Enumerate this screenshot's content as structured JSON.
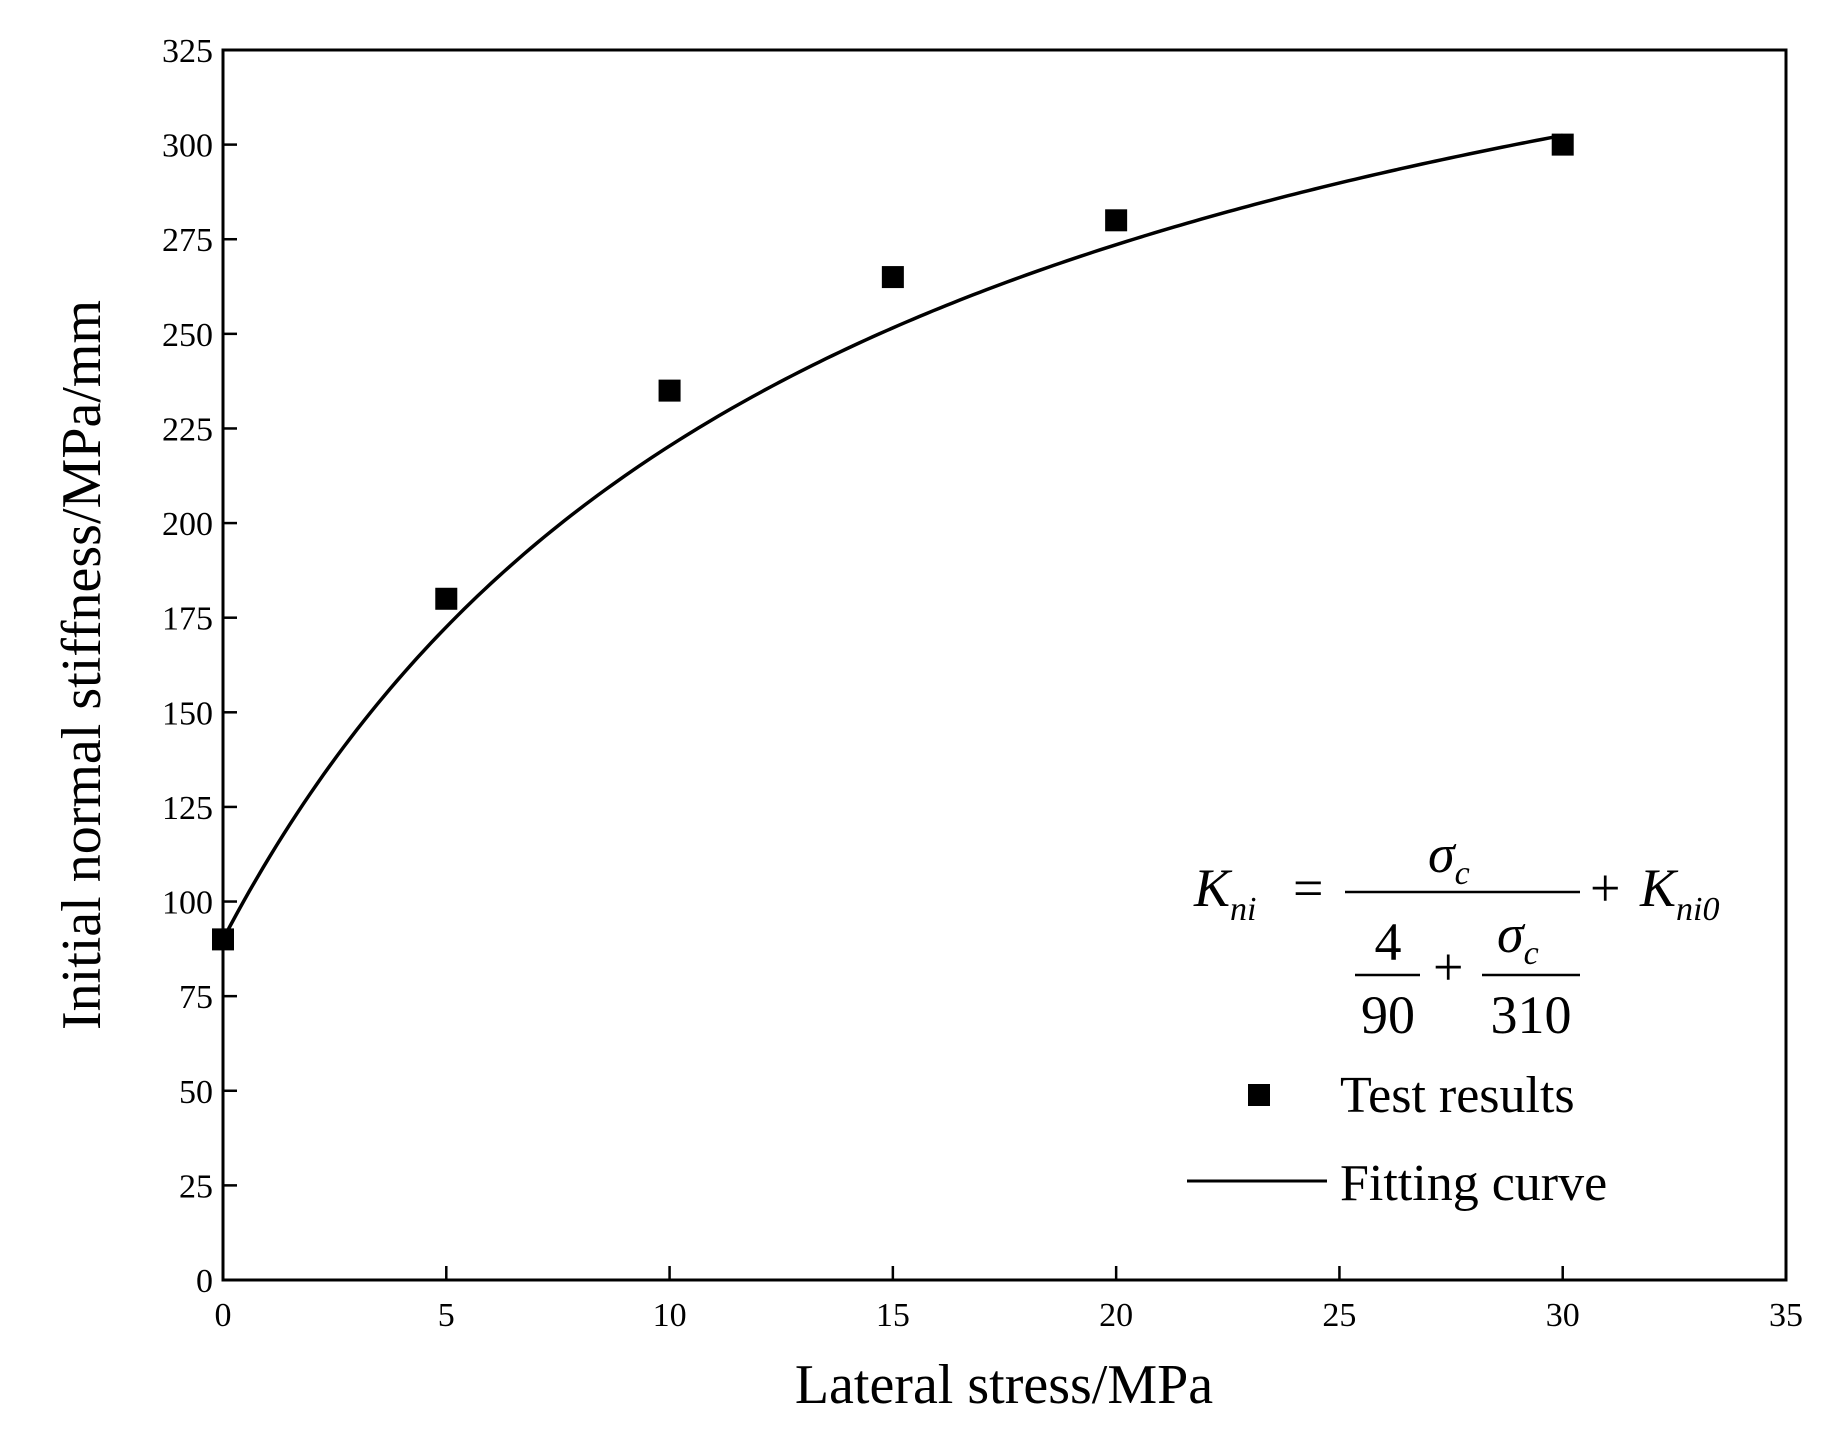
{
  "chart_data": {
    "type": "scatter",
    "title": "",
    "xlabel": "Lateral stress/MPa",
    "ylabel": "Initial normal stiffness/MPa/mm",
    "xlim": [
      0,
      35
    ],
    "ylim": [
      0,
      325
    ],
    "xticks": [
      0,
      5,
      10,
      15,
      20,
      25,
      30,
      35
    ],
    "yticks": [
      0,
      25,
      50,
      75,
      100,
      125,
      150,
      175,
      200,
      225,
      250,
      275,
      300,
      325
    ],
    "grid": false,
    "legend_position": "bottom-right",
    "series": [
      {
        "name": "Test results",
        "kind": "scatter",
        "marker": "square",
        "x": [
          0,
          5,
          10,
          15,
          20,
          30
        ],
        "y": [
          90,
          180,
          235,
          265,
          280,
          300
        ]
      },
      {
        "name": "Fitting curve",
        "kind": "line",
        "model": {
          "a": 4,
          "b": 90,
          "c": 310,
          "k0": 90
        },
        "x_range": [
          0,
          30
        ]
      }
    ],
    "equation": {
      "lhs": "K",
      "lhs_sub": "ni",
      "equals": "=",
      "numerator": "σ",
      "numerator_sub": "c",
      "den_frac_num": "4",
      "den_frac_den": "90",
      "plus": "+",
      "den_sigma": "σ",
      "den_sigma_sub": "c",
      "den_sigma_den": "310",
      "rhs": "K",
      "rhs_sub": "ni0"
    }
  }
}
